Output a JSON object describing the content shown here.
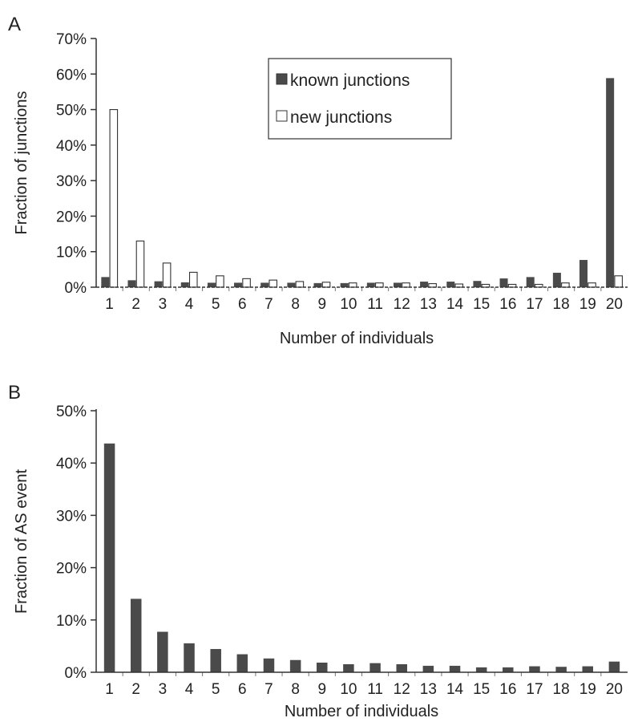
{
  "colors": {
    "dark_bar": "#4a4a4a",
    "open_bar": "#ffffff",
    "outline": "#333333"
  },
  "chart_data": [
    {
      "panel": "A",
      "type": "bar",
      "title": "",
      "xlabel": "Number of individuals",
      "ylabel": "Fraction of  junctions",
      "ylim": [
        0,
        70
      ],
      "y_ticks": [
        "0%",
        "10%",
        "20%",
        "30%",
        "40%",
        "50%",
        "60%",
        "70%"
      ],
      "categories": [
        "1",
        "2",
        "3",
        "4",
        "5",
        "6",
        "7",
        "8",
        "9",
        "10",
        "11",
        "12",
        "13",
        "14",
        "15",
        "16",
        "17",
        "18",
        "19",
        "20"
      ],
      "legend_position": "top-center",
      "series": [
        {
          "name": "known junctions",
          "style": "filled",
          "values": [
            2.8,
            1.9,
            1.6,
            1.3,
            1.2,
            1.2,
            1.2,
            1.2,
            1.1,
            1.1,
            1.2,
            1.2,
            1.5,
            1.5,
            1.7,
            2.4,
            2.8,
            4.0,
            7.6,
            58.8
          ]
        },
        {
          "name": "new junctions",
          "style": "open",
          "values": [
            50.0,
            13.0,
            6.8,
            4.2,
            3.2,
            2.4,
            2.0,
            1.6,
            1.4,
            1.2,
            1.2,
            1.2,
            1.0,
            0.9,
            0.8,
            0.8,
            0.8,
            1.2,
            1.2,
            3.2
          ]
        }
      ]
    },
    {
      "panel": "B",
      "type": "bar",
      "title": "",
      "xlabel": "Number of individuals",
      "ylabel": "Fraction of AS event",
      "ylim": [
        0,
        50
      ],
      "y_ticks": [
        "0%",
        "10%",
        "20%",
        "30%",
        "40%",
        "50%"
      ],
      "categories": [
        "1",
        "2",
        "3",
        "4",
        "5",
        "6",
        "7",
        "8",
        "9",
        "10",
        "11",
        "12",
        "13",
        "14",
        "15",
        "16",
        "17",
        "18",
        "19",
        "20"
      ],
      "series": [
        {
          "name": "",
          "style": "filled",
          "values": [
            43.7,
            14.0,
            7.7,
            5.5,
            4.4,
            3.4,
            2.6,
            2.3,
            1.8,
            1.5,
            1.7,
            1.5,
            1.2,
            1.2,
            0.9,
            0.9,
            1.1,
            1.0,
            1.1,
            2.0
          ]
        }
      ]
    }
  ]
}
